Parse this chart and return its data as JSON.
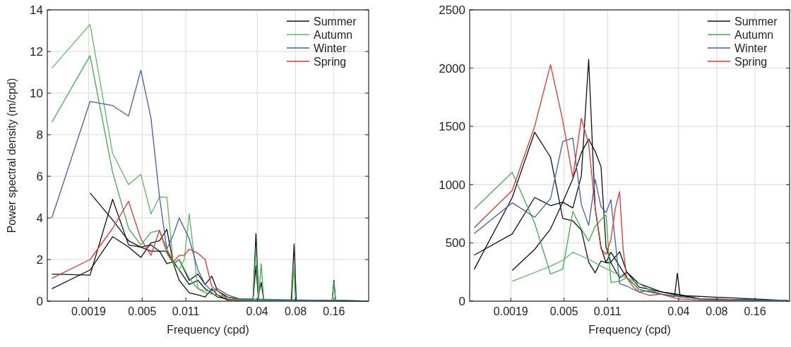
{
  "chart_data": [
    {
      "type": "line",
      "xlabel": "Frequency (cpd)",
      "ylabel": "Power spectral density (m/cpd)",
      "log": "x",
      "grid": true,
      "legend": "top right",
      "line_style": "solid",
      "xlim": [
        0.0009,
        0.3
      ],
      "xticks": [
        0.0019,
        0.005,
        0.011,
        0.04,
        0.08,
        0.16
      ],
      "ylim": [
        0,
        14
      ],
      "yticks": [
        0,
        2,
        4,
        6,
        8,
        10,
        12,
        14
      ],
      "series": [
        {
          "name": "Summer",
          "color": "#111111",
          "x": [
            0.000977,
            0.00195,
            0.00293,
            0.00391,
            0.00488,
            0.00586,
            0.00684,
            0.00781,
            0.00879,
            0.00977,
            0.0117,
            0.0137,
            0.0156,
            0.0176,
            0.0195,
            0.0234,
            0.0293,
            0.0371,
            0.0391,
            0.041,
            0.043,
            0.045,
            0.074,
            0.078,
            0.081,
            0.155,
            0.16,
            0.165,
            0.29
          ],
          "values": [
            1.3,
            1.25,
            4.9,
            2.7,
            2.6,
            2.4,
            2.4,
            2.4,
            1.8,
            2.0,
            1.0,
            1.3,
            0.8,
            1.2,
            0.5,
            0.2,
            0.1,
            0.1,
            3.25,
            0.3,
            0.9,
            0.05,
            0.05,
            2.75,
            0.05,
            0.05,
            1.0,
            0.05,
            0
          ]
        },
        {
          "color": "#111111",
          "x": [
            0.00195,
            0.00293,
            0.00391,
            0.00488,
            0.00586,
            0.00684,
            0.00781,
            0.00879,
            0.00977,
            0.0117,
            0.0137,
            0.0156,
            0.0176,
            0.0195,
            0.0234,
            0.0293,
            0.0371,
            0.0391,
            0.041,
            0.29
          ],
          "values": [
            5.2,
            3.9,
            2.9,
            2.6,
            2.7,
            2.4,
            1.8,
            1.9,
            1.5,
            0.8,
            1.0,
            0.6,
            0.4,
            0.2,
            0.1,
            0.05,
            0.05,
            1.7,
            0.05,
            0
          ]
        },
        {
          "color": "#111111",
          "x": [
            0.000977,
            0.00195,
            0.00293,
            0.00391,
            0.00488,
            0.00586,
            0.00684,
            0.00781,
            0.00879,
            0.00977,
            0.0117,
            0.0137,
            0.0156,
            0.0176,
            0.0195,
            0.0234,
            0.29
          ],
          "values": [
            0.6,
            1.5,
            3.1,
            2.6,
            2.1,
            2.8,
            2.9,
            3.45,
            1.8,
            1.0,
            0.4,
            0.3,
            0.2,
            0.6,
            0.3,
            0.05,
            0
          ]
        },
        {
          "name": "Autumn",
          "color": "#5cbd5e",
          "x": [
            0.000977,
            0.00195,
            0.00293,
            0.00391,
            0.00488,
            0.00586,
            0.00684,
            0.00781,
            0.00879,
            0.00977,
            0.0107,
            0.0117,
            0.0137,
            0.0156,
            0.0195,
            0.0234,
            0.0293,
            0.29
          ],
          "values": [
            11.2,
            13.3,
            7.1,
            5.6,
            6.1,
            4.2,
            5.0,
            5.0,
            1.8,
            1.5,
            2.0,
            4.2,
            0.6,
            0.5,
            0.5,
            0.1,
            0.05,
            0
          ]
        },
        {
          "color": "#3fae4a",
          "x": [
            0.000977,
            0.00195,
            0.00293,
            0.00391,
            0.00488,
            0.00586,
            0.00684,
            0.00781,
            0.00879,
            0.00977,
            0.0117,
            0.0137,
            0.0156,
            0.0195,
            0.0293,
            0.0371,
            0.0391,
            0.041,
            0.043,
            0.045,
            0.075,
            0.077,
            0.08,
            0.155,
            0.16,
            0.165,
            0.29
          ],
          "values": [
            8.6,
            11.8,
            6.2,
            3.5,
            2.7,
            3.3,
            3.4,
            2.3,
            1.8,
            2.0,
            1.1,
            0.6,
            0.4,
            0.3,
            0.05,
            0.1,
            2.6,
            0.1,
            1.8,
            0.05,
            0.05,
            1.7,
            0.05,
            0.05,
            0.9,
            0.05,
            0
          ]
        },
        {
          "name": "Winter",
          "color": "#3d5fb4",
          "x": [
            0.000977,
            0.00195,
            0.00293,
            0.00391,
            0.00488,
            0.00586,
            0.00684,
            0.00781,
            0.00879,
            0.00977,
            0.0107,
            0.0117,
            0.0137,
            0.0156,
            0.0176,
            0.0195,
            0.0234,
            0.0293,
            0.0391,
            0.29
          ],
          "values": [
            4.0,
            9.6,
            9.4,
            8.9,
            11.1,
            8.8,
            5.0,
            2.5,
            3.2,
            4.0,
            3.5,
            3.0,
            1.5,
            0.8,
            0.5,
            0.6,
            0.3,
            0.1,
            0.1,
            0
          ]
        },
        {
          "name": "Spring",
          "color": "#e8332b",
          "x": [
            0.000977,
            0.00195,
            0.00293,
            0.00391,
            0.00488,
            0.00586,
            0.00684,
            0.00781,
            0.00879,
            0.00977,
            0.0107,
            0.0117,
            0.0127,
            0.0137,
            0.0156,
            0.0176,
            0.0195,
            0.0234,
            0.0293
          ],
          "values": [
            1.1,
            2.0,
            3.5,
            4.8,
            3.0,
            2.2,
            3.4,
            2.5,
            1.9,
            2.2,
            2.2,
            2.5,
            2.4,
            2.3,
            2.0,
            0.7,
            0.5,
            0.1,
            0.02
          ]
        }
      ]
    },
    {
      "type": "line",
      "xlabel": "Frequency (cpd)",
      "log": "x",
      "grid": true,
      "legend": "top right",
      "line_style": "solid",
      "xlim": [
        0.0009,
        0.3
      ],
      "xticks": [
        0.0019,
        0.005,
        0.011,
        0.04,
        0.08,
        0.16
      ],
      "ylim": [
        0,
        2500
      ],
      "yticks": [
        0,
        500,
        1000,
        1500,
        2000,
        2500
      ],
      "series": [
        {
          "name": "Summer",
          "color": "#111111",
          "x": [
            0.000977,
            0.00195,
            0.00293,
            0.00391,
            0.00488,
            0.00586,
            0.00684,
            0.00781,
            0.00879,
            0.00977,
            0.0107,
            0.0117,
            0.0137,
            0.0156,
            0.0176,
            0.0195,
            0.0234,
            0.0293,
            0.0371,
            0.0391,
            0.041,
            0.0586,
            0.117,
            0.29
          ],
          "values": [
            273,
            890,
            1450,
            1235,
            710,
            690,
            610,
            335,
            243,
            345,
            330,
            420,
            300,
            200,
            150,
            100,
            80,
            60,
            40,
            240,
            50,
            20,
            10,
            5
          ]
        },
        {
          "color": "#111111",
          "x": [
            0.000977,
            0.00195,
            0.00293,
            0.00391,
            0.00488,
            0.00586,
            0.00684,
            0.00781,
            0.00879,
            0.00977,
            0.0107,
            0.0117,
            0.0137,
            0.0156,
            0.0195,
            0.0293,
            0.0391,
            0.0586,
            0.29
          ],
          "values": [
            395,
            577,
            890,
            820,
            850,
            800,
            1075,
            2075,
            800,
            465,
            330,
            330,
            200,
            250,
            120,
            80,
            60,
            20,
            5
          ]
        },
        {
          "color": "#111111",
          "x": [
            0.00195,
            0.00293,
            0.00391,
            0.00488,
            0.00586,
            0.00684,
            0.00781,
            0.00879,
            0.00977,
            0.0107,
            0.0117,
            0.0137,
            0.0156,
            0.0195,
            0.0293,
            0.0391,
            0.29
          ],
          "values": [
            263,
            445,
            620,
            850,
            1050,
            1275,
            1390,
            1285,
            1155,
            465,
            335,
            425,
            250,
            150,
            80,
            50,
            5
          ]
        },
        {
          "name": "Autumn",
          "color": "#3fae4a",
          "x": [
            0.000977,
            0.00195,
            0.00293,
            0.00391,
            0.00488,
            0.00586,
            0.00684,
            0.00781,
            0.00879,
            0.00977,
            0.0107,
            0.0117,
            0.0137,
            0.0156,
            0.0176,
            0.0195,
            0.0234,
            0.0293,
            0.0391,
            0.0586,
            0.117,
            0.29
          ],
          "values": [
            790,
            1105,
            670,
            233,
            275,
            770,
            620,
            515,
            640,
            700,
            740,
            160,
            170,
            200,
            150,
            100,
            80,
            60,
            40,
            20,
            10,
            5
          ]
        },
        {
          "color": "#5cbd5e",
          "x": [
            0.00195,
            0.00391,
            0.00488,
            0.00586,
            0.00781,
            0.00977,
            0.0117,
            0.0137,
            0.0156,
            0.0195,
            0.0234,
            0.0293,
            0.0391,
            0.0586,
            0.117,
            0.29
          ],
          "values": [
            170,
            300,
            350,
            420,
            360,
            300,
            260,
            220,
            200,
            150,
            100,
            60,
            40,
            20,
            10,
            5
          ]
        },
        {
          "name": "Winter",
          "color": "#3d5fb4",
          "x": [
            0.000977,
            0.00195,
            0.00293,
            0.00391,
            0.00488,
            0.00586,
            0.00684,
            0.00781,
            0.00879,
            0.00977,
            0.0107,
            0.0117,
            0.0127,
            0.0137,
            0.0156,
            0.0176,
            0.0195,
            0.0234,
            0.0293,
            0.0391,
            0.0586,
            0.117,
            0.29
          ],
          "values": [
            580,
            845,
            720,
            880,
            1370,
            1400,
            830,
            650,
            1045,
            810,
            760,
            870,
            500,
            150,
            130,
            100,
            80,
            90,
            60,
            40,
            20,
            10,
            5
          ]
        },
        {
          "name": "Spring",
          "color": "#e8332b",
          "x": [
            0.000977,
            0.00195,
            0.00293,
            0.00391,
            0.00488,
            0.00586,
            0.00684,
            0.00781,
            0.00879,
            0.00977,
            0.0107,
            0.0117,
            0.0127,
            0.0137,
            0.0146,
            0.0156,
            0.0176,
            0.0195,
            0.0234,
            0.0293,
            0.0391,
            0.0586,
            0.117
          ],
          "values": [
            630,
            950,
            1500,
            2030,
            1550,
            1060,
            1570,
            1350,
            800,
            450,
            400,
            530,
            800,
            940,
            450,
            200,
            120,
            80,
            50,
            60,
            20,
            10,
            5
          ]
        }
      ]
    }
  ]
}
